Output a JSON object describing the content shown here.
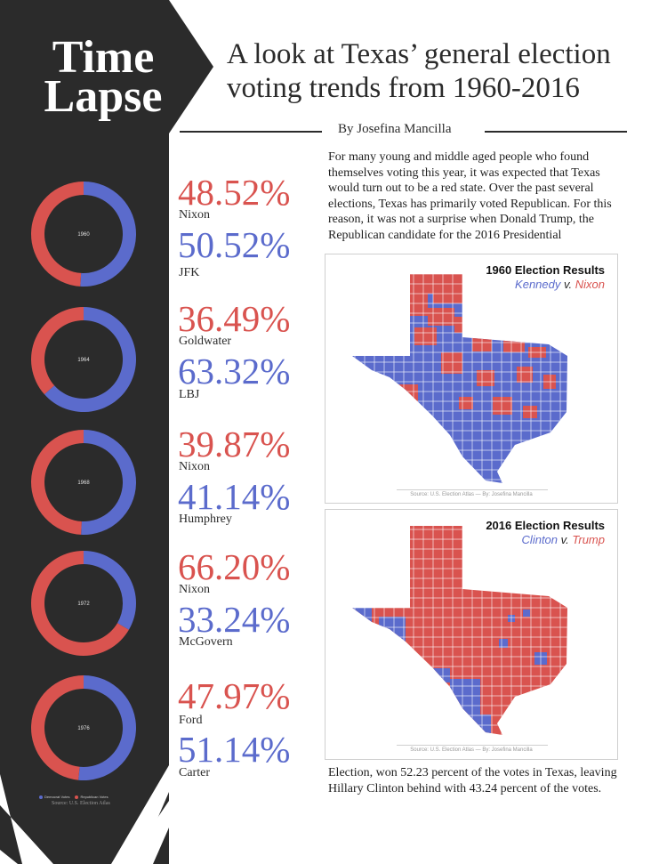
{
  "sidebar": {
    "title_line1": "Time",
    "title_line2": "Lapse",
    "legend": {
      "dem_label": "Democrat Votes",
      "rep_label": "Republican Votes"
    },
    "source": "Source: U.S. Election Atlas"
  },
  "headline": {
    "line1": "A look at Texas’ general election",
    "line2": "voting trends from 1960-2016"
  },
  "byline": "By Josefina Mancilla",
  "colors": {
    "dem": "#5b6bcc",
    "rep": "#d9534f",
    "dark": "#2b2b2b"
  },
  "chart_data": [
    {
      "type": "pie",
      "center_label": "1960",
      "slices": [
        {
          "name": "Democrat Votes",
          "candidate": "JFK",
          "value": 50.52,
          "label": "50.52%"
        },
        {
          "name": "Republican Votes",
          "candidate": "Nixon",
          "value": 48.52,
          "label": "48.52%"
        }
      ]
    },
    {
      "type": "pie",
      "center_label": "1964",
      "slices": [
        {
          "name": "Democrat Votes",
          "candidate": "LBJ",
          "value": 63.32,
          "label": "63.32%"
        },
        {
          "name": "Republican Votes",
          "candidate": "Goldwater",
          "value": 36.49,
          "label": "36.49%"
        }
      ]
    },
    {
      "type": "pie",
      "center_label": "1968",
      "slices": [
        {
          "name": "Democrat Votes",
          "candidate": "Humphrey",
          "value": 41.14,
          "label": "41.14%"
        },
        {
          "name": "Republican Votes",
          "candidate": "Nixon",
          "value": 39.87,
          "label": "39.87%"
        }
      ]
    },
    {
      "type": "pie",
      "center_label": "1972",
      "slices": [
        {
          "name": "Democrat Votes",
          "candidate": "McGovern",
          "value": 33.24,
          "label": "33.24%"
        },
        {
          "name": "Republican Votes",
          "candidate": "Nixon",
          "value": 66.2,
          "label": "66.20%"
        }
      ]
    },
    {
      "type": "pie",
      "center_label": "1976",
      "slices": [
        {
          "name": "Democrat Votes",
          "candidate": "Carter",
          "value": 51.14,
          "label": "51.14%"
        },
        {
          "name": "Republican Votes",
          "candidate": "Ford",
          "value": 47.97,
          "label": "47.97%"
        }
      ]
    }
  ],
  "article": {
    "para1": "For many young and middle aged people who found themselves voting this year, it was expected that Texas would turn out to be a red state. Over the past several elections, Texas has primarily voted Republican. For this reason, it was not a surprise when Donald Trump, the Republican candidate for the 2016 Presidential",
    "para2": "Election, won 52.23 percent of the votes in Texas, leaving Hillary Clinton behind with 43.24 percent of the votes."
  },
  "maps": [
    {
      "title": "1960 Election Results",
      "dem": "Kennedy",
      "sep": " v. ",
      "rep": "Nixon",
      "source": "Source: U.S. Election Atlas — By: Josefina Mancilla"
    },
    {
      "title": "2016 Election Results",
      "dem": "Clinton",
      "sep": " v. ",
      "rep": "Trump",
      "source": "Source: U.S. Election Atlas — By: Josefina Mancilla"
    }
  ]
}
